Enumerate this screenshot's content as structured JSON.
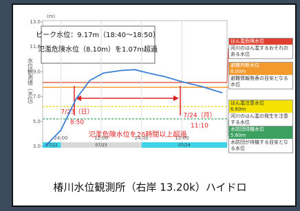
{
  "chart_data": {
    "type": "line",
    "y_label": "(m)",
    "y_axis_title": "水位観測値（水位）",
    "x": [
      19.3,
      24,
      28.5,
      32.6,
      36.7,
      41.8,
      45.9,
      50,
      55,
      60,
      66,
      72
    ],
    "values": [
      3.0,
      4.3,
      6.8,
      8.3,
      8.9,
      9.1,
      9.17,
      8.9,
      8.6,
      8.2,
      7.8,
      7.3
    ],
    "color": "#3a7fd6",
    "xlim": [
      18.6,
      73.4
    ],
    "xticks": [
      {
        "value": 24,
        "label": "24:00"
      },
      {
        "value": 36,
        "label": "12:00"
      },
      {
        "value": 48,
        "label": "24:00"
      },
      {
        "value": 60,
        "label": "12:00"
      }
    ],
    "ylim": [
      3,
      13
    ],
    "yticks": [
      {
        "value": 3,
        "label": "3.0"
      },
      {
        "value": 5,
        "label": "5.0"
      },
      {
        "value": 7,
        "label": "7.0"
      },
      {
        "value": 9,
        "label": "9.0"
      },
      {
        "value": 11,
        "label": "11.0"
      },
      {
        "value": 13,
        "label": "13.0"
      }
    ],
    "dates": [
      "07/22",
      "07/23",
      "07/24"
    ],
    "peak_note": [
      "ピーク水位：9.17m（18:40〜18:50）",
      "氾濫危険水位（8.10m）を1.07m超過"
    ],
    "start_label": [
      "7/23（日）",
      "8:50"
    ],
    "end_label": [
      "7/24（月）",
      "11:10"
    ],
    "exceed_note": "氾濫危険水位を26時間以上超過",
    "caption": "椿川水位観測所（右岸 13.20k）ハイドロ",
    "levels": [
      {
        "title": "はん濫危険水位",
        "note": "河川のはん濫するおそれのある水位"
      },
      {
        "title": "避難判断水位",
        "level": "8.00m",
        "note": "避難情報発表の目安となる水位"
      },
      {
        "title": "はん濫注意水位",
        "level": "6.60m",
        "note": "河川のはん濫の発生を注意する水位"
      },
      {
        "title": "水防団待機水位",
        "level": "5.60m",
        "note": "水防団が待機する目安となる水位"
      }
    ]
  }
}
